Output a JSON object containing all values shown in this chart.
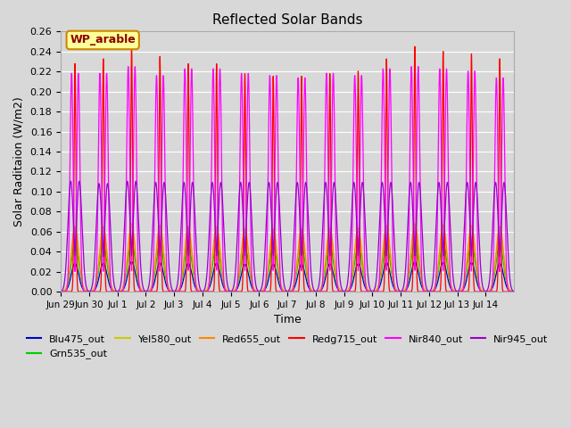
{
  "title": "Reflected Solar Bands",
  "xlabel": "Time",
  "ylabel": "Solar Raditaion (W/m2)",
  "ylim": [
    0.0,
    0.26
  ],
  "yticks": [
    0.0,
    0.02,
    0.04,
    0.06,
    0.08,
    0.1,
    0.12,
    0.14,
    0.16,
    0.18,
    0.2,
    0.22,
    0.24,
    0.26
  ],
  "plot_bg_color": "#d8d8d8",
  "fig_bg_color": "#d8d8d8",
  "grid_color": "#ffffff",
  "annotation_text": "WP_arable",
  "annotation_bg": "#ffff99",
  "annotation_edge": "#cc8800",
  "annotation_text_color": "#8b0000",
  "series": [
    {
      "label": "Blu475_out",
      "color": "#0000cc",
      "peak": 0.03,
      "sharpness": 14,
      "double": false
    },
    {
      "label": "Grn535_out",
      "color": "#00cc00",
      "peak": 0.05,
      "sharpness": 10,
      "double": false
    },
    {
      "label": "Yel580_out",
      "color": "#cccc00",
      "peak": 0.065,
      "sharpness": 10,
      "double": false
    },
    {
      "label": "Red655_out",
      "color": "#ff8800",
      "peak": 0.068,
      "sharpness": 8,
      "double": false
    },
    {
      "label": "Redg715_out",
      "color": "#ff0000",
      "peak": 0.245,
      "sharpness": 40,
      "double": false
    },
    {
      "label": "Nir840_out",
      "color": "#ff00ff",
      "peak": 0.225,
      "sharpness": 30,
      "double": true
    },
    {
      "label": "Nir945_out",
      "color": "#9900cc",
      "peak": 0.115,
      "sharpness": 6,
      "double": true
    }
  ],
  "num_days": 16,
  "points_per_day": 288,
  "xtick_labels": [
    "Jun 29",
    "Jun 30",
    "Jul 1",
    "Jul 2",
    "Jul 3",
    "Jul 4",
    "Jul 5",
    "Jul 6",
    "Jul 7",
    "Jul 8",
    "Jul 9",
    "Jul 10",
    "Jul 11",
    "Jul 12",
    "Jul 13",
    "Jul 14"
  ],
  "day_peak_fractions_redg": [
    0.93,
    0.95,
    1.0,
    0.96,
    0.93,
    0.93,
    0.89,
    0.88,
    0.88,
    0.89,
    0.9,
    0.95,
    1.0,
    0.98,
    0.97,
    0.95
  ],
  "day_peak_fractions_nir840": [
    0.97,
    0.97,
    1.0,
    0.96,
    0.99,
    0.99,
    0.97,
    0.96,
    0.95,
    0.97,
    0.96,
    0.99,
    1.0,
    0.99,
    0.98,
    0.95
  ],
  "day_peak_fractions_nir945": [
    0.96,
    0.94,
    0.96,
    0.95,
    0.95,
    0.95,
    0.95,
    0.95,
    0.95,
    0.95,
    0.95,
    0.95,
    0.95,
    0.95,
    0.95,
    0.95
  ],
  "day_peak_fractions_other": [
    0.95,
    0.95,
    1.0,
    0.97,
    0.95,
    0.95,
    0.92,
    0.92,
    0.92,
    0.93,
    0.93,
    0.97,
    1.0,
    0.98,
    0.97,
    0.95
  ]
}
